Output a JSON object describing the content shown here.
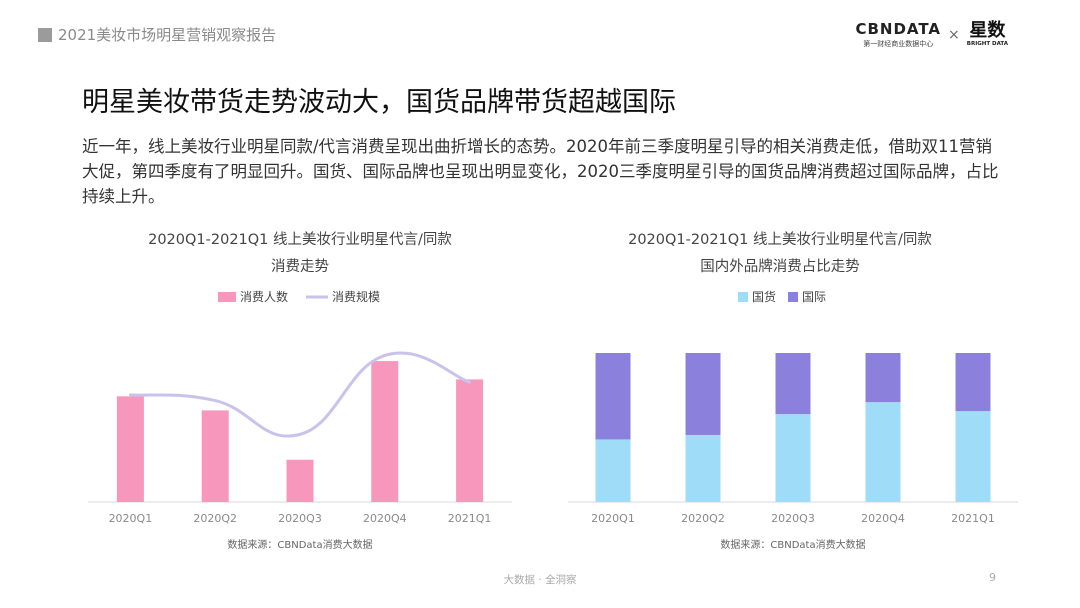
{
  "header": {
    "report_title": "2021美妆市场明星营销观察报告"
  },
  "brand": {
    "cbn_main": "CBNDATA",
    "cbn_sub": "第一财经商业数据中心",
    "separator": "×",
    "xs_main": "星数",
    "xs_sub": "BRIGHT DATA"
  },
  "page": {
    "title": "明星美妆带货走势波动大，国货品牌带货超越国际",
    "summary": "近一年，线上美妆行业明星同款/代言消费呈现出曲折增长的态势。2020年前三季度明星引导的相关消费走低，借助双11营销大促，第四季度有了明显回升。国货、国际品牌也呈现出明显变化，2020三季度明星引导的国货品牌消费超过国际品牌，占比持续上升。"
  },
  "colors": {
    "pink": "#f797bb",
    "lavender": "#c9c3ec",
    "light_blue": "#9fdcf8",
    "purple": "#8b80dc",
    "axis": "#d9d9d9"
  },
  "chart_data": [
    {
      "type": "bar",
      "title_line1": "2020Q1-2021Q1 线上美妆行业明星代言/同款",
      "title_line2": "消费走势",
      "categories": [
        "2020Q1",
        "2020Q2",
        "2020Q3",
        "2020Q4",
        "2021Q1"
      ],
      "series": [
        {
          "name": "消费人数",
          "type": "bar",
          "color": "#f797bb",
          "values": [
            75,
            65,
            30,
            100,
            87
          ]
        },
        {
          "name": "消费规模",
          "type": "line",
          "color": "#c9c3ec",
          "values": [
            76,
            72,
            48,
            104,
            85
          ]
        }
      ],
      "ylim": [
        0,
        110
      ],
      "legend_position": "top",
      "source": "数据来源：CBNData消费大数据"
    },
    {
      "type": "bar",
      "stacked": true,
      "title_line1": "2020Q1-2021Q1 线上美妆行业明星代言/同款",
      "title_line2": "国内外品牌消费占比走势",
      "categories": [
        "2020Q1",
        "2020Q2",
        "2020Q3",
        "2020Q4",
        "2021Q1"
      ],
      "series": [
        {
          "name": "国货",
          "color": "#9fdcf8",
          "values": [
            42,
            45,
            59,
            67,
            61
          ]
        },
        {
          "name": "国际",
          "color": "#8b80dc",
          "values": [
            58,
            55,
            41,
            33,
            39
          ]
        }
      ],
      "ylim": [
        0,
        100
      ],
      "legend_position": "top",
      "source": "数据来源：CBNData消费大数据"
    }
  ],
  "footer": {
    "slogan": "大数据 · 全洞察",
    "page_number": "9"
  }
}
